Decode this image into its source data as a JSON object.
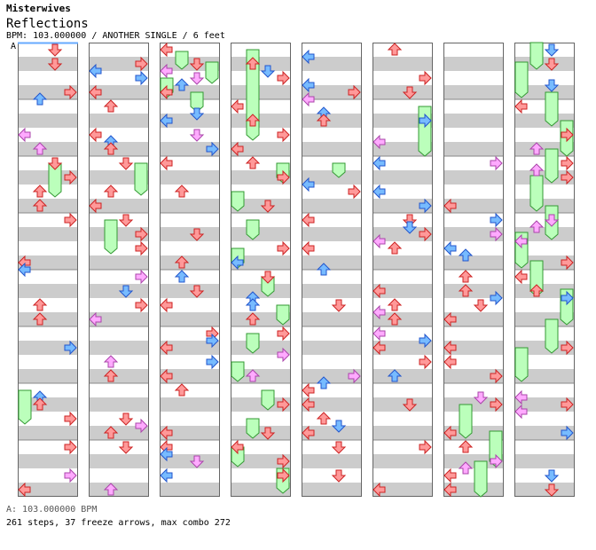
{
  "song": {
    "artist": "Misterwives",
    "title": "Reflections",
    "info": "BPM: 103.000000 / ANOTHER SINGLE / 6 feet"
  },
  "chart_marker": "A",
  "footer": {
    "bpm_line": "A: 103.000000 BPM",
    "stats_line": "261 steps, 37 freeze arrows, max combo 272"
  },
  "colors": {
    "stripe": "#cccccc",
    "column_border": "#666666",
    "red_arrow": "#ff9999",
    "red_stroke": "#cc2222",
    "blue_arrow": "#77bbff",
    "blue_stroke": "#2255cc",
    "pink_arrow": "#ffaaff",
    "pink_stroke": "#aa44aa",
    "freeze_fill": "#bbffbb",
    "freeze_stroke": "#339933",
    "bpm_line": "#66aaff"
  },
  "chart_data": {
    "type": "step chart",
    "columns": 8,
    "measures_per_column": 8,
    "lanes": [
      "left",
      "down",
      "up",
      "right"
    ],
    "steps": 261,
    "freeze_arrows": 37,
    "max_combo": 272,
    "bpm": 103.0
  }
}
